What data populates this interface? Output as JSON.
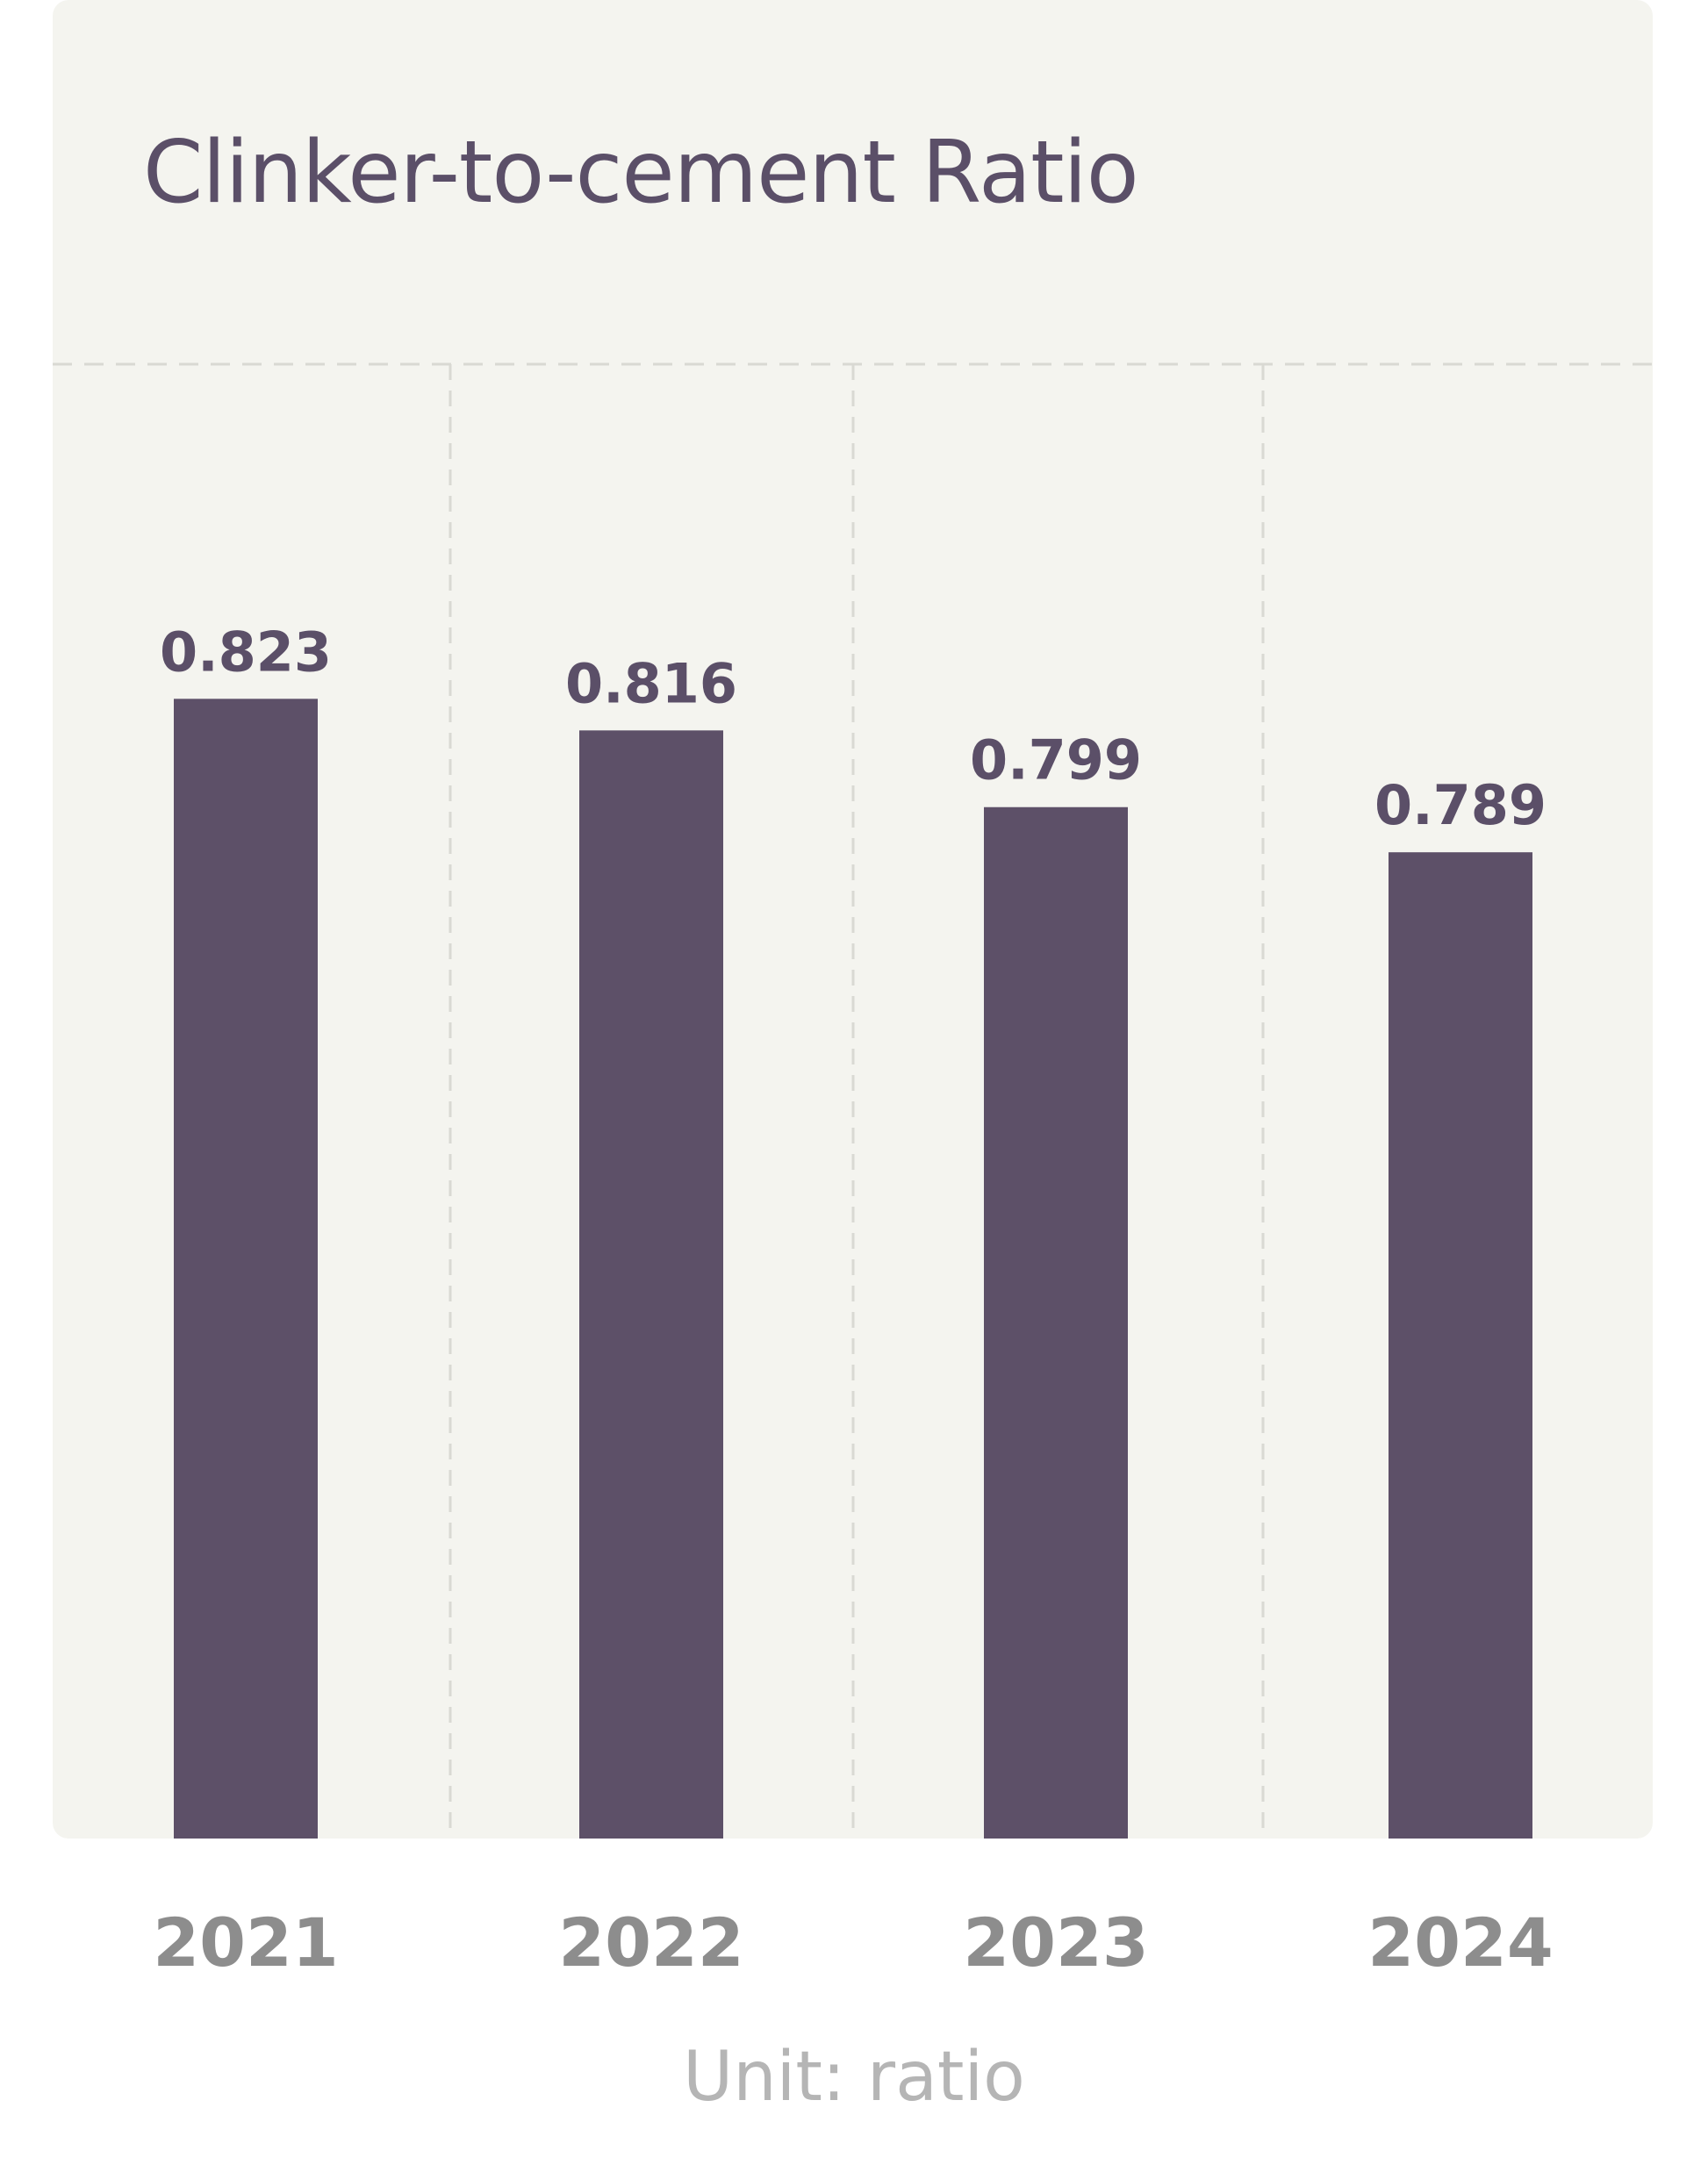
{
  "chart_data": {
    "type": "bar",
    "title": "Clinker-to-cement Ratio",
    "categories": [
      "2021",
      "2022",
      "2023",
      "2024"
    ],
    "values": [
      0.823,
      0.816,
      0.799,
      0.789
    ],
    "value_labels": [
      "0.823",
      "0.816",
      "0.799",
      "0.789"
    ],
    "unit_label": "Unit: ratio",
    "xlabel": "",
    "ylabel": "",
    "grid": true,
    "colors": {
      "bar": "#5d5068",
      "value_text": "#5b4f68",
      "category_text": "#8d8d8d",
      "unit_text": "#b5b5b5",
      "card_background": "#f4f4ef",
      "grid": "#d9d9d3"
    }
  }
}
